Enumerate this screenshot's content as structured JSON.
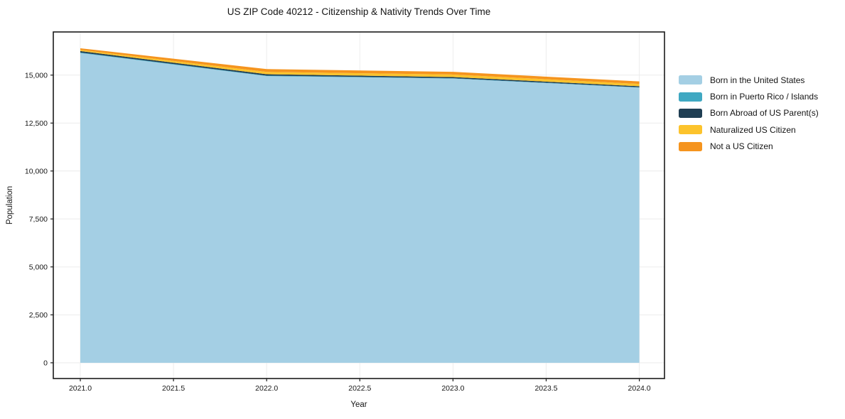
{
  "title": "US ZIP Code 40212 - Citizenship & Nativity Trends Over Time",
  "chart_data": {
    "type": "area",
    "stacked": true,
    "title": "US ZIP Code 40212 - Citizenship & Nativity Trends Over Time",
    "xlabel": "Year",
    "ylabel": "Population",
    "x": [
      2021,
      2022,
      2023,
      2024
    ],
    "series": [
      {
        "name": "Born in the United States",
        "color": "#a4cfe4",
        "values": [
          16150,
          14950,
          14820,
          14350
        ]
      },
      {
        "name": "Born in Puerto Rico / Islands",
        "color": "#3fa8c2",
        "values": [
          30,
          25,
          20,
          15
        ]
      },
      {
        "name": "Born Abroad of US Parent(s)",
        "color": "#1f3e53",
        "values": [
          75,
          70,
          60,
          55
        ]
      },
      {
        "name": "Naturalized US Citizen",
        "color": "#fcc32c",
        "values": [
          60,
          120,
          130,
          120
        ]
      },
      {
        "name": "Not a US Citizen",
        "color": "#f5941e",
        "values": [
          85,
          150,
          140,
          130
        ]
      }
    ],
    "xticks": [
      2021,
      2021.5,
      2022,
      2022.5,
      2023,
      2023.5,
      2024
    ],
    "xtick_labels": [
      "2021.0",
      "2021.5",
      "2022.0",
      "2022.5",
      "2023.0",
      "2023.5",
      "2024.0"
    ],
    "yticks": [
      0,
      2500,
      5000,
      7500,
      10000,
      12500,
      15000
    ],
    "ytick_labels": [
      "0",
      "2,500",
      "5,000",
      "7,500",
      "10,000",
      "12,500",
      "15,000"
    ],
    "xlim": [
      2020.855,
      2024.135
    ],
    "ylim": [
      -820,
      17250
    ],
    "grid": true,
    "grid_color": "#ececec",
    "axis_color": "#1a1a1a",
    "legend_position": "right"
  }
}
